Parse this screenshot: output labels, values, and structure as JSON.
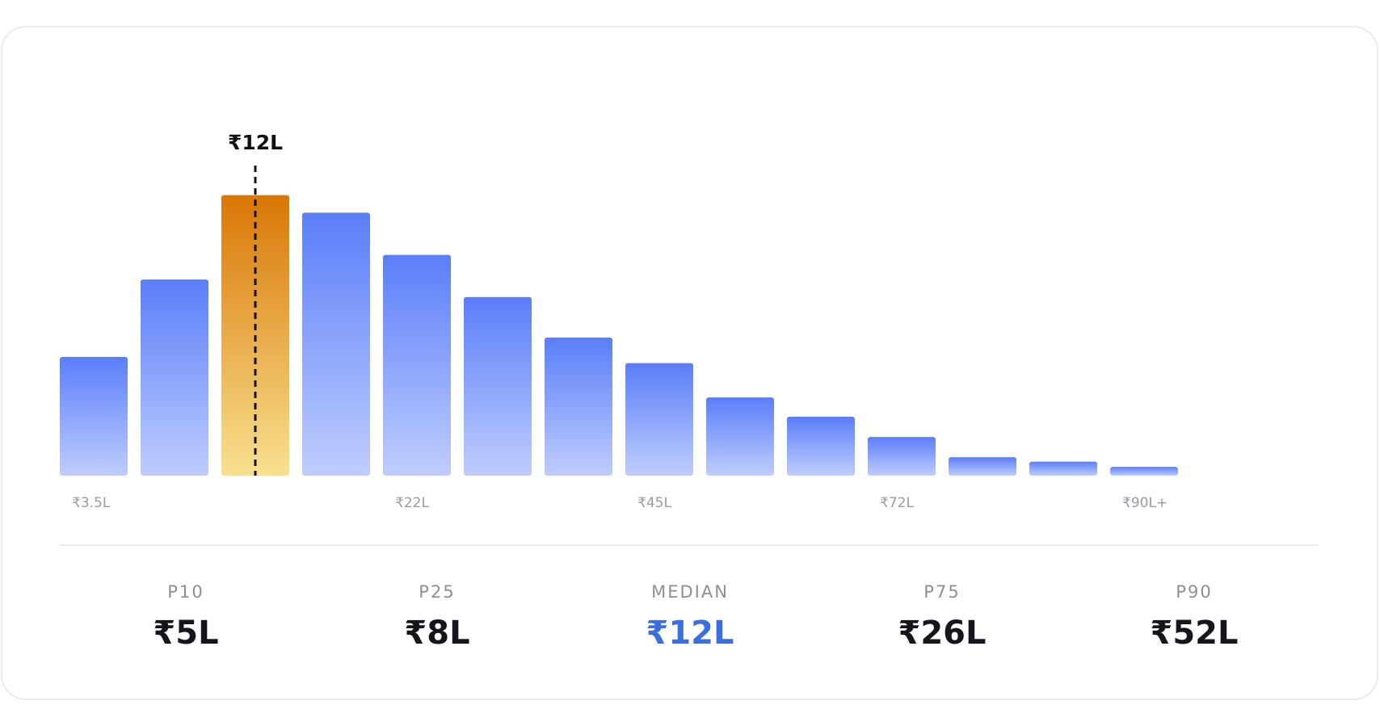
{
  "chart_data": {
    "type": "bar",
    "categories": [
      "₹3.5L",
      null,
      null,
      null,
      "₹22L",
      null,
      null,
      "₹45L",
      null,
      null,
      "₹72L",
      null,
      null,
      "₹90L+"
    ],
    "values": [
      135,
      223,
      319,
      299,
      251,
      203,
      157,
      128,
      89,
      67,
      44,
      21,
      16,
      10
    ],
    "ylim": [
      0,
      320
    ],
    "color": "#5a7ef9",
    "marker": {
      "label": "₹12L",
      "bar": 2,
      "color": "#d97706"
    },
    "stats": [
      {
        "label": "P10",
        "value": "₹5L"
      },
      {
        "label": "P25",
        "value": "₹8L"
      },
      {
        "label": "MEDIAN",
        "value": "₹12L",
        "color": "#3b6fe0"
      },
      {
        "label": "P75",
        "value": "₹26L"
      },
      {
        "label": "P90",
        "value": "₹52L"
      }
    ]
  }
}
